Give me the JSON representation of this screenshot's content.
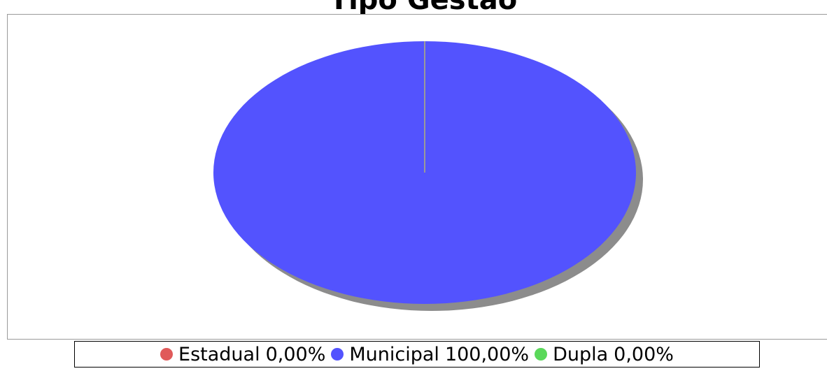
{
  "chart_data": {
    "type": "pie",
    "title": "Tipo Gestão",
    "slices": [
      {
        "label": "Estadual",
        "value": 0.0,
        "display": "0,00%",
        "color": "#e05a5a"
      },
      {
        "label": "Municipal",
        "value": 100.0,
        "display": "100,00%",
        "color": "#5353fe"
      },
      {
        "label": "Dupla",
        "value": 0.0,
        "display": "0,00%",
        "color": "#5ad85a"
      }
    ],
    "legend_placement": "bottom"
  },
  "colors": {
    "shadow": "#8c8c8c",
    "frame_border": "#9a9a9a",
    "separator": "#9a9a9a"
  }
}
